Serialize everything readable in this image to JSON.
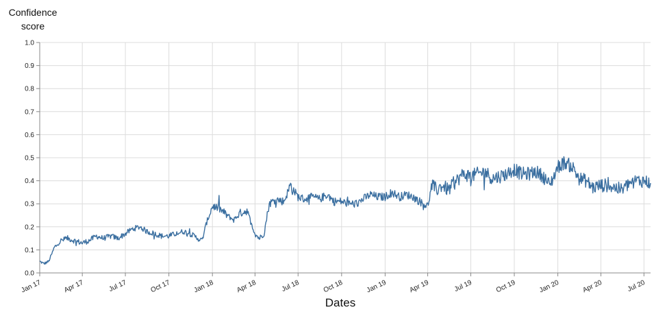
{
  "chart_data": {
    "type": "line",
    "xlabel": "Dates",
    "ylabel_line1": "Confidence",
    "ylabel_line2": "score",
    "ylim": [
      0,
      1
    ],
    "xlim": [
      "2017-01-01",
      "2020-07-15"
    ],
    "grid": true,
    "legend": "none",
    "line_color": "#3b6fa0",
    "y_ticks": [
      "0.0",
      "0.1",
      "0.2",
      "0.3",
      "0.4",
      "0.5",
      "0.6",
      "0.7",
      "0.8",
      "0.9",
      "1.0"
    ],
    "x_ticks": [
      {
        "label": "Jan 17",
        "date": "2017-01-01"
      },
      {
        "label": "Apr 17",
        "date": "2017-04-01"
      },
      {
        "label": "Jul 17",
        "date": "2017-07-01"
      },
      {
        "label": "Oct 17",
        "date": "2017-10-01"
      },
      {
        "label": "Jan 18",
        "date": "2018-01-01"
      },
      {
        "label": "Apr 18",
        "date": "2018-04-01"
      },
      {
        "label": "Jul 18",
        "date": "2018-07-01"
      },
      {
        "label": "Oct 18",
        "date": "2018-10-01"
      },
      {
        "label": "Jan 19",
        "date": "2019-01-01"
      },
      {
        "label": "Apr 19",
        "date": "2019-04-01"
      },
      {
        "label": "Jul 19",
        "date": "2019-07-01"
      },
      {
        "label": "Oct 19",
        "date": "2019-10-01"
      },
      {
        "label": "Jan 20",
        "date": "2020-01-01"
      },
      {
        "label": "Apr 20",
        "date": "2020-04-01"
      },
      {
        "label": "Jul 20",
        "date": "2020-07-01"
      }
    ],
    "series": [
      {
        "points": [
          [
            "2017-01-01",
            0.05
          ],
          [
            "2017-01-10",
            0.04
          ],
          [
            "2017-01-20",
            0.05
          ],
          [
            "2017-02-01",
            0.11
          ],
          [
            "2017-02-15",
            0.14
          ],
          [
            "2017-03-01",
            0.15
          ],
          [
            "2017-03-15",
            0.14
          ],
          [
            "2017-04-01",
            0.13
          ],
          [
            "2017-04-15",
            0.14
          ],
          [
            "2017-05-01",
            0.16
          ],
          [
            "2017-05-15",
            0.15
          ],
          [
            "2017-06-01",
            0.16
          ],
          [
            "2017-06-15",
            0.15
          ],
          [
            "2017-07-01",
            0.17
          ],
          [
            "2017-07-15",
            0.19
          ],
          [
            "2017-08-01",
            0.2
          ],
          [
            "2017-08-15",
            0.18
          ],
          [
            "2017-09-01",
            0.17
          ],
          [
            "2017-09-15",
            0.16
          ],
          [
            "2017-10-01",
            0.16
          ],
          [
            "2017-10-15",
            0.17
          ],
          [
            "2017-11-01",
            0.18
          ],
          [
            "2017-11-15",
            0.17
          ],
          [
            "2017-12-01",
            0.15
          ],
          [
            "2017-12-10",
            0.14
          ],
          [
            "2017-12-20",
            0.22
          ],
          [
            "2018-01-01",
            0.29
          ],
          [
            "2018-01-15",
            0.28
          ],
          [
            "2018-02-01",
            0.25
          ],
          [
            "2018-02-15",
            0.23
          ],
          [
            "2018-03-01",
            0.26
          ],
          [
            "2018-03-15",
            0.27
          ],
          [
            "2018-04-01",
            0.17
          ],
          [
            "2018-04-10",
            0.15
          ],
          [
            "2018-04-20",
            0.17
          ],
          [
            "2018-05-01",
            0.3
          ],
          [
            "2018-05-15",
            0.32
          ],
          [
            "2018-06-01",
            0.31
          ],
          [
            "2018-06-15",
            0.38
          ],
          [
            "2018-07-01",
            0.33
          ],
          [
            "2018-07-15",
            0.32
          ],
          [
            "2018-08-01",
            0.33
          ],
          [
            "2018-08-15",
            0.32
          ],
          [
            "2018-09-01",
            0.34
          ],
          [
            "2018-09-15",
            0.31
          ],
          [
            "2018-10-01",
            0.31
          ],
          [
            "2018-10-15",
            0.3
          ],
          [
            "2018-11-01",
            0.3
          ],
          [
            "2018-11-15",
            0.32
          ],
          [
            "2018-12-01",
            0.34
          ],
          [
            "2018-12-15",
            0.33
          ],
          [
            "2019-01-01",
            0.33
          ],
          [
            "2019-01-15",
            0.35
          ],
          [
            "2019-02-01",
            0.33
          ],
          [
            "2019-02-15",
            0.34
          ],
          [
            "2019-03-01",
            0.33
          ],
          [
            "2019-03-15",
            0.31
          ],
          [
            "2019-04-01",
            0.29
          ],
          [
            "2019-04-10",
            0.38
          ],
          [
            "2019-04-20",
            0.36
          ],
          [
            "2019-05-01",
            0.38
          ],
          [
            "2019-05-15",
            0.36
          ],
          [
            "2019-06-01",
            0.4
          ],
          [
            "2019-06-15",
            0.43
          ],
          [
            "2019-07-01",
            0.42
          ],
          [
            "2019-07-15",
            0.43
          ],
          [
            "2019-08-01",
            0.44
          ],
          [
            "2019-08-15",
            0.41
          ],
          [
            "2019-09-01",
            0.42
          ],
          [
            "2019-09-15",
            0.43
          ],
          [
            "2019-10-01",
            0.45
          ],
          [
            "2019-10-15",
            0.43
          ],
          [
            "2019-11-01",
            0.43
          ],
          [
            "2019-11-15",
            0.44
          ],
          [
            "2019-12-01",
            0.42
          ],
          [
            "2019-12-15",
            0.38
          ],
          [
            "2020-01-01",
            0.46
          ],
          [
            "2020-01-15",
            0.48
          ],
          [
            "2020-02-01",
            0.46
          ],
          [
            "2020-02-15",
            0.41
          ],
          [
            "2020-03-01",
            0.4
          ],
          [
            "2020-03-15",
            0.37
          ],
          [
            "2020-04-01",
            0.38
          ],
          [
            "2020-04-15",
            0.38
          ],
          [
            "2020-05-01",
            0.37
          ],
          [
            "2020-05-15",
            0.36
          ],
          [
            "2020-06-01",
            0.39
          ],
          [
            "2020-06-15",
            0.4
          ],
          [
            "2020-07-01",
            0.4
          ],
          [
            "2020-07-15",
            0.39
          ]
        ]
      }
    ]
  }
}
